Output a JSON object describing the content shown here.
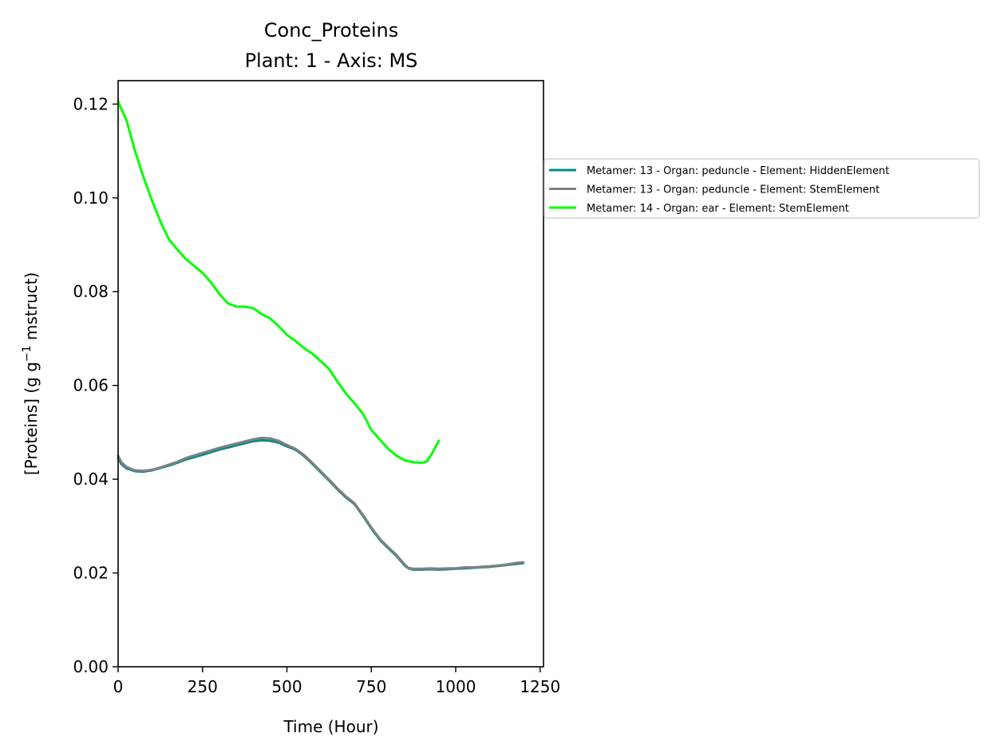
{
  "chart_data": {
    "type": "line",
    "title": "Conc_Proteins",
    "subtitle": "Plant: 1 - Axis: MS",
    "xlabel": "Time (Hour)",
    "ylabel_main": "[Proteins] (g g",
    "ylabel_sup": "−1",
    "ylabel_tail": " mstruct)",
    "xlim": [
      0,
      1260
    ],
    "ylim": [
      0,
      0.125
    ],
    "xticks": [
      0,
      250,
      500,
      750,
      1000,
      1250
    ],
    "xtick_labels": [
      "0",
      "250",
      "500",
      "750",
      "1000",
      "1250"
    ],
    "yticks": [
      0.0,
      0.02,
      0.04,
      0.06,
      0.08,
      0.1,
      0.12
    ],
    "ytick_labels": [
      "0.00",
      "0.02",
      "0.04",
      "0.06",
      "0.08",
      "0.10",
      "0.12"
    ],
    "grid": false,
    "legend_position": "outside-right",
    "series": [
      {
        "name": "Metamer: 13 - Organ: peduncle - Element: HiddenElement",
        "color": "#008b8b",
        "x": [
          0,
          10,
          25,
          50,
          75,
          100,
          125,
          150,
          175,
          200,
          250,
          300,
          350,
          400,
          425,
          450,
          475,
          500,
          525,
          550,
          575,
          600,
          625,
          650,
          675,
          700,
          725,
          750,
          775,
          800,
          825,
          850,
          860,
          875,
          900,
          925,
          950,
          975,
          1000,
          1025,
          1050,
          1075,
          1100,
          1125,
          1150,
          1175,
          1200
        ],
        "y": [
          0.0445,
          0.0432,
          0.0423,
          0.0417,
          0.0416,
          0.0419,
          0.0424,
          0.0429,
          0.0435,
          0.0442,
          0.0452,
          0.0463,
          0.0472,
          0.0481,
          0.0483,
          0.0482,
          0.0478,
          0.047,
          0.0463,
          0.045,
          0.0433,
          0.0415,
          0.0397,
          0.0378,
          0.0361,
          0.0347,
          0.0322,
          0.0295,
          0.0271,
          0.0253,
          0.0236,
          0.0215,
          0.021,
          0.0207,
          0.0207,
          0.0208,
          0.0207,
          0.0208,
          0.0209,
          0.021,
          0.0211,
          0.0212,
          0.0213,
          0.0215,
          0.0217,
          0.0219,
          0.0221
        ]
      },
      {
        "name": "Metamer: 13 - Organ: peduncle - Element: StemElement",
        "color": "#808080",
        "x": [
          0,
          10,
          25,
          50,
          75,
          100,
          125,
          150,
          175,
          200,
          250,
          300,
          350,
          400,
          425,
          450,
          475,
          500,
          525,
          550,
          575,
          600,
          625,
          650,
          675,
          700,
          725,
          750,
          775,
          800,
          825,
          850,
          860,
          875,
          900,
          925,
          950,
          975,
          1000,
          1025,
          1050,
          1075,
          1100,
          1125,
          1150,
          1175,
          1200
        ],
        "y": [
          0.045,
          0.0436,
          0.0426,
          0.0419,
          0.0418,
          0.042,
          0.0425,
          0.0431,
          0.0437,
          0.0445,
          0.0456,
          0.0467,
          0.0476,
          0.0485,
          0.0488,
          0.0487,
          0.0482,
          0.0473,
          0.0465,
          0.0452,
          0.0435,
          0.0417,
          0.0399,
          0.038,
          0.0363,
          0.0349,
          0.0324,
          0.0297,
          0.0273,
          0.0255,
          0.0238,
          0.0217,
          0.0211,
          0.0209,
          0.0209,
          0.021,
          0.0209,
          0.021,
          0.021,
          0.0212,
          0.0212,
          0.0213,
          0.0214,
          0.0216,
          0.0218,
          0.0221,
          0.0223
        ]
      },
      {
        "name": "Metamer: 14 - Organ: ear - Element: StemElement",
        "color": "#00ff00",
        "x": [
          0,
          25,
          50,
          75,
          100,
          125,
          150,
          175,
          200,
          225,
          250,
          275,
          300,
          325,
          350,
          375,
          400,
          425,
          450,
          475,
          500,
          525,
          550,
          575,
          600,
          625,
          650,
          675,
          700,
          725,
          750,
          775,
          800,
          825,
          850,
          875,
          900,
          915,
          930,
          950
        ],
        "y": [
          0.1205,
          0.1165,
          0.11,
          0.1045,
          0.0995,
          0.095,
          0.0912,
          0.089,
          0.087,
          0.0855,
          0.084,
          0.082,
          0.0795,
          0.0775,
          0.0768,
          0.0768,
          0.0765,
          0.0752,
          0.0743,
          0.0727,
          0.0708,
          0.0695,
          0.068,
          0.0668,
          0.0652,
          0.0635,
          0.0608,
          0.0583,
          0.0562,
          0.054,
          0.0505,
          0.0485,
          0.0465,
          0.045,
          0.044,
          0.0436,
          0.0435,
          0.0438,
          0.0455,
          0.0482
        ]
      }
    ]
  }
}
